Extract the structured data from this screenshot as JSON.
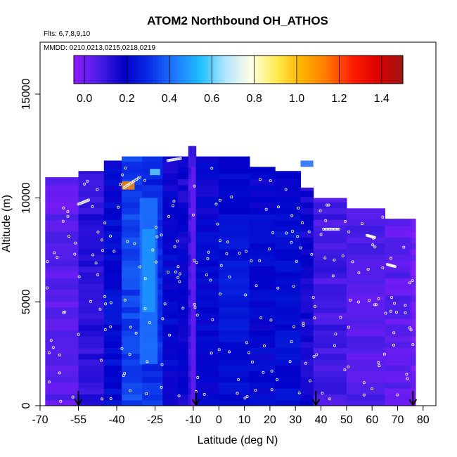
{
  "chart_data": {
    "type": "heatmap",
    "title": "ATOM2 Northbound OH_ATHOS",
    "flights_label": "Flts: 6,7,8,9,10",
    "dates_label": "MMDD: 0210,0213,0215,0218,0219",
    "xlabel": "Latitude (deg N)",
    "ylabel": "Altitude (m)",
    "xlim": [
      -70,
      85
    ],
    "ylim": [
      0,
      17500
    ],
    "x_ticks": [
      -70,
      -55,
      -40,
      -25,
      -10,
      0,
      10,
      20,
      30,
      40,
      50,
      60,
      70,
      80
    ],
    "x_tick_labels": [
      "-70",
      "-55",
      "-40",
      "-25",
      "-10",
      "0",
      "10",
      "20",
      "30",
      "40",
      "50",
      "60",
      "70",
      "80"
    ],
    "y_ticks": [
      0,
      5000,
      10000,
      15000
    ],
    "y_tick_labels": [
      "0",
      "5000",
      "10000",
      "15000"
    ],
    "colorbar": {
      "min": -0.05,
      "max": 1.5,
      "ticks": [
        0.0,
        0.2,
        0.4,
        0.6,
        0.8,
        1.0,
        1.2,
        1.4
      ],
      "tick_labels": [
        "0.0",
        "0.2",
        "0.4",
        "0.6",
        "0.8",
        "1.0",
        "1.2",
        "1.4"
      ],
      "palette": [
        "#8c1aff",
        "#4a1ee6",
        "#0000c8",
        "#0a2ee6",
        "#1e78ff",
        "#1ebeff",
        "#b4e6ff",
        "#ffffe6",
        "#ffeb50",
        "#ffb400",
        "#ff7800",
        "#ff1e00",
        "#dc0000",
        "#a01414"
      ]
    },
    "field_columns": [
      {
        "lat_min": -68,
        "lat_max": -55,
        "alt_top": 11000,
        "value": 0.04
      },
      {
        "lat_min": -55,
        "lat_max": -45,
        "alt_top": 11300,
        "value": 0.12
      },
      {
        "lat_min": -45,
        "lat_max": -38,
        "alt_top": 11800,
        "value": 0.22
      },
      {
        "lat_min": -38,
        "lat_max": -30,
        "alt_top": 12000,
        "value": 0.34
      },
      {
        "lat_min": -30,
        "lat_max": -22,
        "alt_top": 12000,
        "value": 0.3
      },
      {
        "lat_min": -22,
        "lat_max": -16,
        "alt_top": 12000,
        "value": 0.2
      },
      {
        "lat_min": -16,
        "lat_max": -12,
        "alt_top": 12000,
        "value": 0.17
      },
      {
        "lat_min": -12,
        "lat_max": -9,
        "alt_top": 12500,
        "value": 0.1
      },
      {
        "lat_min": -9,
        "lat_max": 0,
        "alt_top": 12000,
        "value": 0.2
      },
      {
        "lat_min": 0,
        "lat_max": 12,
        "alt_top": 12000,
        "value": 0.24
      },
      {
        "lat_min": 12,
        "lat_max": 22,
        "alt_top": 11500,
        "value": 0.2
      },
      {
        "lat_min": 22,
        "lat_max": 32,
        "alt_top": 11300,
        "value": 0.22
      },
      {
        "lat_min": 32,
        "lat_max": 37,
        "alt_top": 10500,
        "value": 0.16
      },
      {
        "lat_min": 37,
        "lat_max": 50,
        "alt_top": 10000,
        "value": 0.08
      },
      {
        "lat_min": 50,
        "lat_max": 65,
        "alt_top": 9500,
        "value": 0.05
      },
      {
        "lat_min": 65,
        "lat_max": 75,
        "alt_top": 9000,
        "value": 0.04
      },
      {
        "lat_min": 75,
        "lat_max": 77,
        "alt_top": 9000,
        "value": 0.0
      }
    ],
    "field_features": [
      {
        "lat_min": -31,
        "lat_max": -24,
        "alt_min": 2000,
        "alt_max": 10000,
        "value": 0.42
      },
      {
        "lat_min": -30,
        "lat_max": -25,
        "alt_min": 4500,
        "alt_max": 8500,
        "value": 0.48
      },
      {
        "lat_min": -11,
        "lat_max": -9,
        "alt_min": 0,
        "alt_max": 11500,
        "value": 0.02
      },
      {
        "lat_min": -38,
        "lat_max": -33,
        "alt_min": 10400,
        "alt_max": 10800,
        "value": 1.1
      },
      {
        "lat_min": -27,
        "lat_max": -23,
        "alt_min": 11100,
        "alt_max": 11400,
        "value": 0.6
      },
      {
        "lat_min": 32,
        "lat_max": 37,
        "alt_min": 11500,
        "alt_max": 11800,
        "value": 0.4
      }
    ],
    "profile_markers_lat": [
      -55,
      -9,
      38,
      76
    ],
    "sample_tracks": [
      {
        "lat_start": -37,
        "lat_end": -31,
        "alt_start": 10500,
        "alt_end": 11000
      },
      {
        "lat_start": -55,
        "lat_end": -51,
        "alt_start": 9700,
        "alt_end": 9900
      },
      {
        "lat_start": -20,
        "lat_end": -15,
        "alt_start": 11800,
        "alt_end": 11900
      },
      {
        "lat_start": 41,
        "lat_end": 47,
        "alt_start": 8500,
        "alt_end": 8500
      },
      {
        "lat_start": 58,
        "lat_end": 61,
        "alt_start": 8200,
        "alt_end": 8100
      },
      {
        "lat_start": 66,
        "lat_end": 69,
        "alt_start": 6800,
        "alt_end": 6700
      }
    ]
  }
}
